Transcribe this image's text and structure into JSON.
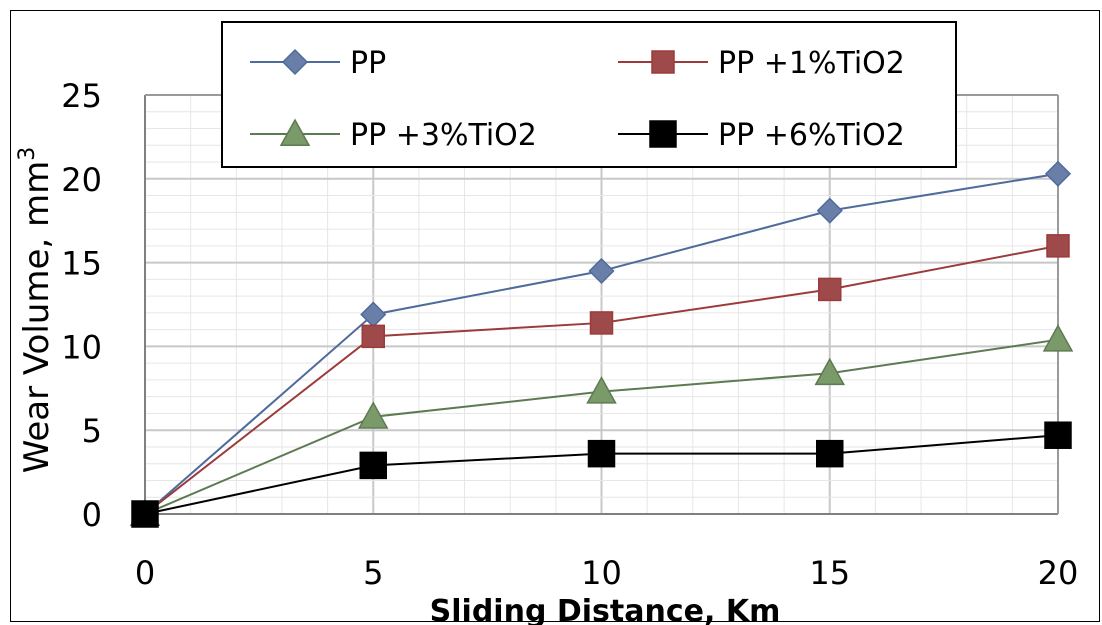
{
  "chart_data": {
    "type": "line",
    "title": "",
    "xlabel": "Sliding Distance, Km",
    "ylabel": "Wear Volume, mm",
    "ylabel_superscript": "3",
    "x": [
      0,
      5,
      10,
      15,
      20
    ],
    "xlim": [
      0,
      20
    ],
    "ylim": [
      0,
      25
    ],
    "xticks": [
      "0",
      "5",
      "10",
      "15",
      "20"
    ],
    "yticks": [
      "0",
      "5",
      "10",
      "15",
      "20",
      "25"
    ],
    "grid": true,
    "legend_position": "top",
    "series": [
      {
        "name": "PP",
        "marker": "diamond",
        "color": "#4F6B9C",
        "marker_color": "#6A7FA8",
        "values": [
          0,
          11.9,
          14.5,
          18.1,
          20.3
        ]
      },
      {
        "name": "PP +1%TiO2",
        "marker": "square",
        "color": "#9C3B3B",
        "marker_color": "#9E4A4A",
        "values": [
          0,
          10.6,
          11.4,
          13.4,
          16.0
        ]
      },
      {
        "name": "PP +3%TiO2",
        "marker": "triangle",
        "color": "#5E7A52",
        "marker_color": "#7A9A6A",
        "values": [
          0,
          5.8,
          7.3,
          8.4,
          10.4
        ]
      },
      {
        "name": "PP +6%TiO2",
        "marker": "square",
        "color": "#000000",
        "marker_color": "#000000",
        "values": [
          0,
          2.9,
          3.6,
          3.6,
          4.7
        ]
      }
    ]
  }
}
